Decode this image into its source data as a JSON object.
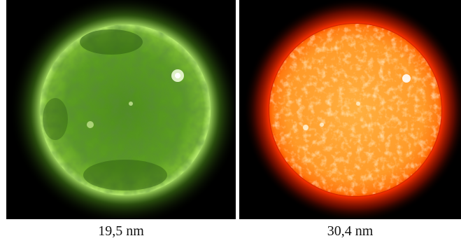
{
  "images": [
    {
      "caption": "19,5 nm",
      "subject": "sun-disk-green",
      "tint": "#6fbf2a",
      "corona": "#9cd84a"
    },
    {
      "caption": "30,4 nm",
      "subject": "sun-disk-orange",
      "tint": "#f07a10",
      "corona": "#ff3a00"
    }
  ]
}
